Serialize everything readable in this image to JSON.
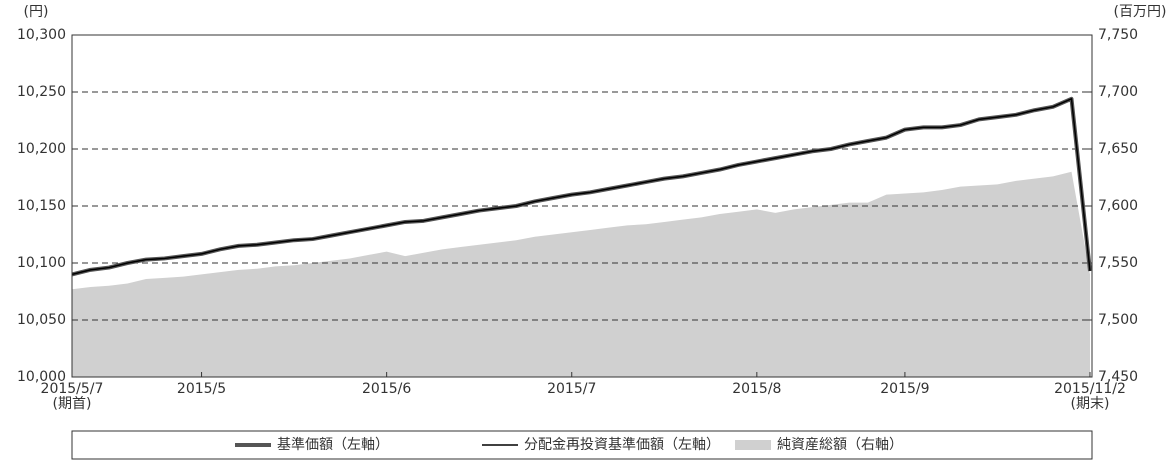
{
  "chart_data": {
    "type": "line",
    "y_label": "(円)",
    "y2_label": "(百万円)",
    "categories": [
      "2015/5/7\n(期首)",
      null,
      null,
      null,
      null,
      null,
      null,
      "2015/5",
      null,
      null,
      null,
      null,
      null,
      null,
      null,
      null,
      null,
      "2015/6",
      null,
      null,
      null,
      null,
      null,
      null,
      null,
      null,
      null,
      "2015/7",
      null,
      null,
      null,
      null,
      null,
      null,
      null,
      null,
      null,
      "2015/8",
      null,
      null,
      null,
      null,
      null,
      null,
      null,
      "2015/9",
      null,
      null,
      null,
      null,
      null,
      null,
      null,
      null,
      null,
      "2015/11/2\n(期末)"
    ],
    "series": [
      {
        "name": "基準価額（左軸）",
        "color": "#555555",
        "type": "line",
        "width": 4,
        "values": [
          10090,
          10094,
          10096,
          10100,
          10103,
          10104,
          10106,
          10108,
          10112,
          10115,
          10116,
          10118,
          10120,
          10121,
          10124,
          10127,
          10130,
          10133,
          10136,
          10137,
          10140,
          10143,
          10146,
          10148,
          10150,
          10154,
          10157,
          10160,
          10162,
          10165,
          10168,
          10171,
          10174,
          10176,
          10179,
          10182,
          10186,
          10189,
          10192,
          10195,
          10198,
          10200,
          10204,
          10207,
          10210,
          10217,
          10219,
          10219,
          10221,
          10226,
          10228,
          10230,
          10234,
          10237,
          10244,
          10093
        ]
      },
      {
        "name": "分配金再投資基準価額（左軸）",
        "color": "#000000",
        "type": "line",
        "width": 1.5,
        "values": [
          10090,
          10094,
          10096,
          10100,
          10103,
          10104,
          10106,
          10108,
          10112,
          10115,
          10116,
          10118,
          10120,
          10121,
          10124,
          10127,
          10130,
          10133,
          10136,
          10137,
          10140,
          10143,
          10146,
          10148,
          10150,
          10154,
          10157,
          10160,
          10162,
          10165,
          10168,
          10171,
          10174,
          10176,
          10179,
          10182,
          10186,
          10189,
          10192,
          10195,
          10198,
          10200,
          10204,
          10207,
          10210,
          10217,
          10219,
          10219,
          10221,
          10226,
          10228,
          10230,
          10234,
          10237,
          10244,
          10093
        ]
      },
      {
        "name": "純資産総額（右軸）",
        "color": "#d0d0d0",
        "type": "area",
        "axis": "y2",
        "values": [
          7527,
          7529,
          7530,
          7532,
          7536,
          7537,
          7538,
          7540,
          7542,
          7544,
          7545,
          7547,
          7548,
          7550,
          7552,
          7554,
          7557,
          7560,
          7556,
          7559,
          7562,
          7564,
          7566,
          7568,
          7570,
          7573,
          7575,
          7577,
          7579,
          7581,
          7583,
          7584,
          7586,
          7588,
          7590,
          7593,
          7595,
          7597,
          7594,
          7597,
          7599,
          7601,
          7603,
          7603,
          7610,
          7611,
          7612,
          7614,
          7617,
          7618,
          7619,
          7622,
          7624,
          7626,
          7630,
          7540
        ]
      }
    ],
    "ylim": [
      10000,
      10300
    ],
    "yticks": [
      {
        "value": 10000,
        "label": "10,000"
      },
      {
        "value": 10050,
        "label": "10,050"
      },
      {
        "value": 10100,
        "label": "10,100"
      },
      {
        "value": 10150,
        "label": "10,150"
      },
      {
        "value": 10200,
        "label": "10,200"
      },
      {
        "value": 10250,
        "label": "10,250"
      },
      {
        "value": 10300,
        "label": "10,300"
      }
    ],
    "y2lim": [
      7450,
      7750
    ],
    "y2ticks": [
      {
        "value": 7450,
        "label": "7,450"
      },
      {
        "value": 7500,
        "label": "7,500"
      },
      {
        "value": 7550,
        "label": "7,550"
      },
      {
        "value": 7600,
        "label": "7,600"
      },
      {
        "value": 7650,
        "label": "7,650"
      },
      {
        "value": 7700,
        "label": "7,700"
      },
      {
        "value": 7750,
        "label": "7,750"
      }
    ],
    "grid": true,
    "legend": "bottom"
  }
}
